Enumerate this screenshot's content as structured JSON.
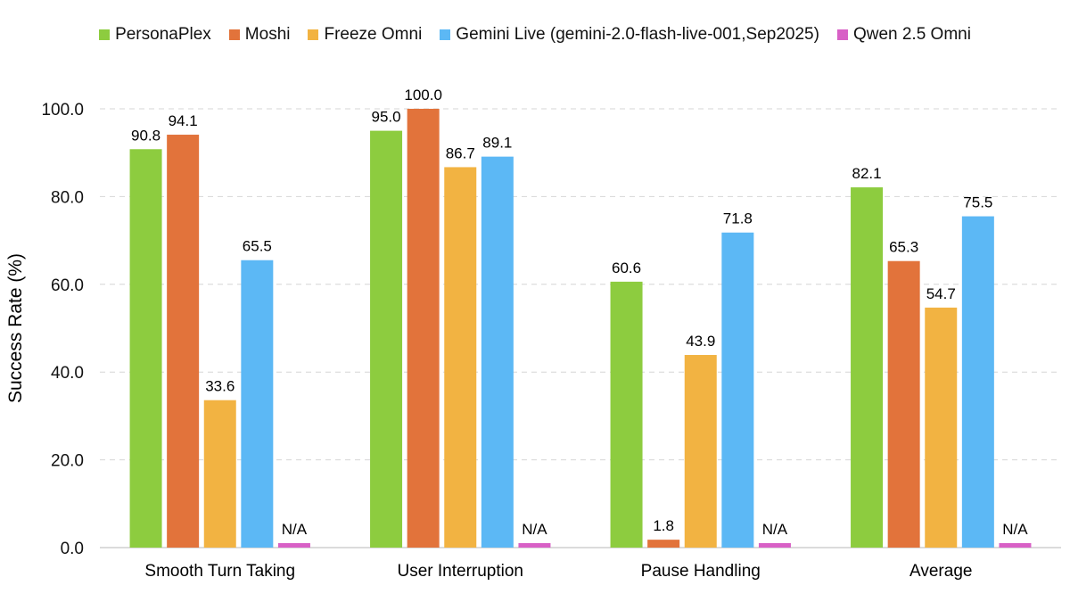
{
  "chart_data": {
    "type": "bar",
    "title": "",
    "xlabel": "",
    "ylabel": "Success Rate (%)",
    "ylim": [
      0,
      100
    ],
    "yticks": [
      "0.0",
      "20.0",
      "40.0",
      "60.0",
      "80.0",
      "100.0"
    ],
    "grid": true,
    "legend_placement": "top",
    "categories": [
      "Smooth Turn Taking",
      "User Interruption",
      "Pause Handling",
      "Average"
    ],
    "series": [
      {
        "name": "PersonaPlex",
        "color": "#8dcc3f",
        "values": [
          90.8,
          95.0,
          60.6,
          82.1
        ],
        "labels": [
          "90.8",
          "95.0",
          "60.6",
          "82.1"
        ]
      },
      {
        "name": "Moshi",
        "color": "#e2733b",
        "values": [
          94.1,
          100.0,
          1.8,
          65.3
        ],
        "labels": [
          "94.1",
          "100.0",
          "1.8",
          "65.3"
        ]
      },
      {
        "name": "Freeze Omni",
        "color": "#f2b342",
        "values": [
          33.6,
          86.7,
          43.9,
          54.7
        ],
        "labels": [
          "33.6",
          "86.7",
          "43.9",
          "54.7"
        ]
      },
      {
        "name": "Gemini Live (gemini-2.0-flash-live-001,Sep2025)",
        "color": "#5cb8f5",
        "values": [
          65.5,
          89.1,
          71.8,
          75.5
        ],
        "labels": [
          "65.5",
          "89.1",
          "71.8",
          "75.5"
        ]
      },
      {
        "name": "Qwen 2.5 Omni",
        "color": "#d860c6",
        "values": [
          null,
          null,
          null,
          null
        ],
        "labels": [
          "N/A",
          "N/A",
          "N/A",
          "N/A"
        ]
      }
    ]
  }
}
